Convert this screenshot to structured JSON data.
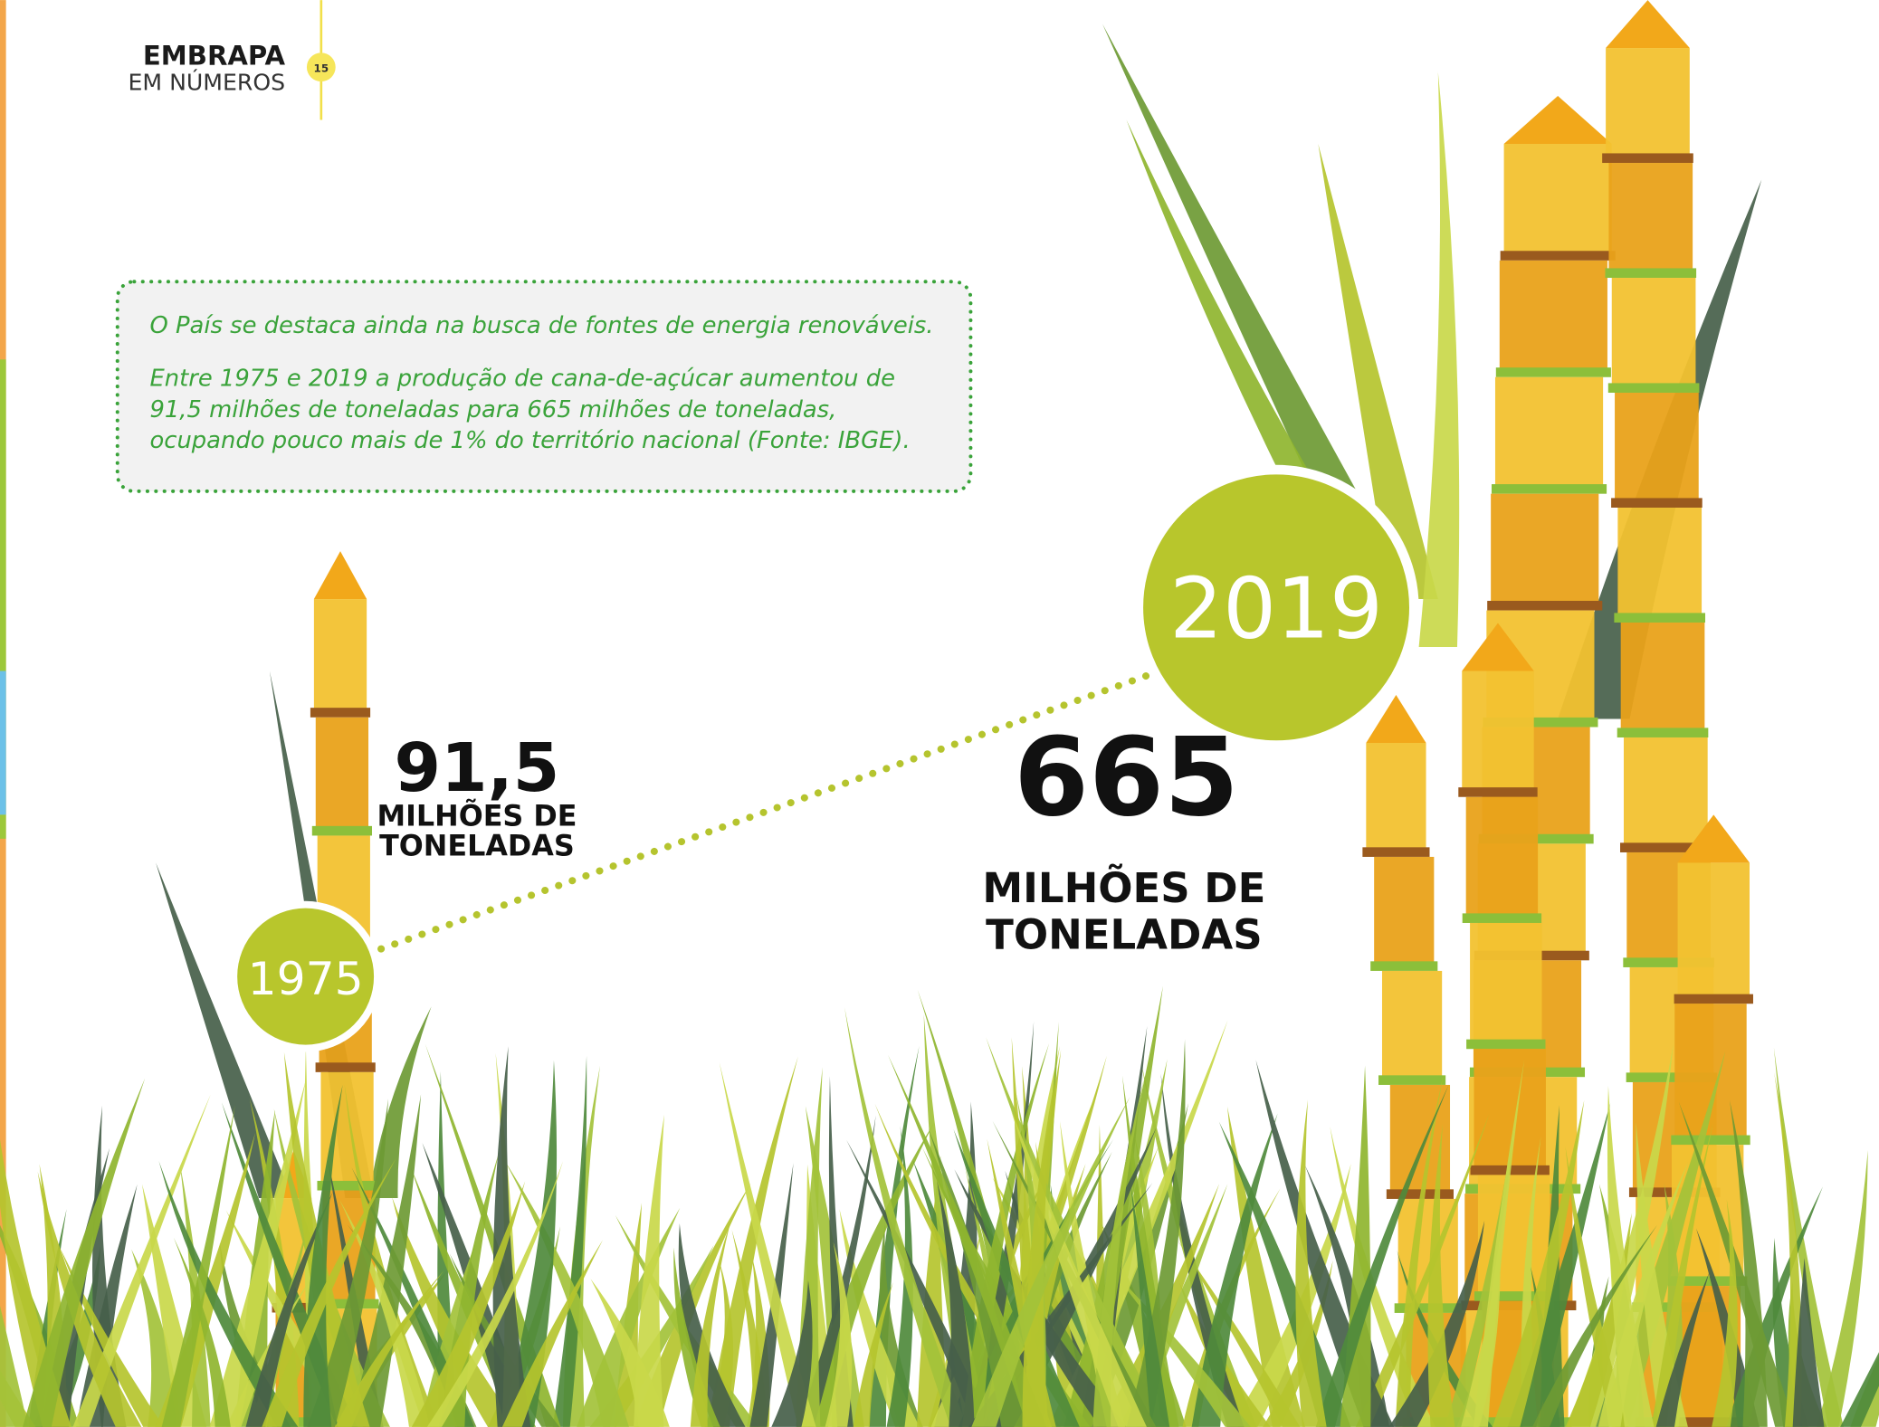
{
  "header": {
    "brand": "EMBRAPA",
    "subtitle": "EM NÚMEROS",
    "page": "15"
  },
  "callout": {
    "paragraphs": [
      [
        "O País se destaca ainda na busca de fontes de energia renováveis."
      ],
      [
        "Entre 1975 e 2019 a produção de cana-de-açúcar aumentou de",
        "91,5 milhões de toneladas para 665 milhões de toneladas,",
        "ocupando pouco mais de 1% do território nacional (Fonte: IBGE)."
      ]
    ]
  },
  "points": [
    {
      "year": "1975",
      "value": "91,5",
      "unit": [
        "MILHÕES DE",
        "TONELADAS"
      ]
    },
    {
      "year": "2019",
      "value": "665",
      "unit": [
        "MILHÕES DE",
        "TONELADAS"
      ]
    }
  ]
}
